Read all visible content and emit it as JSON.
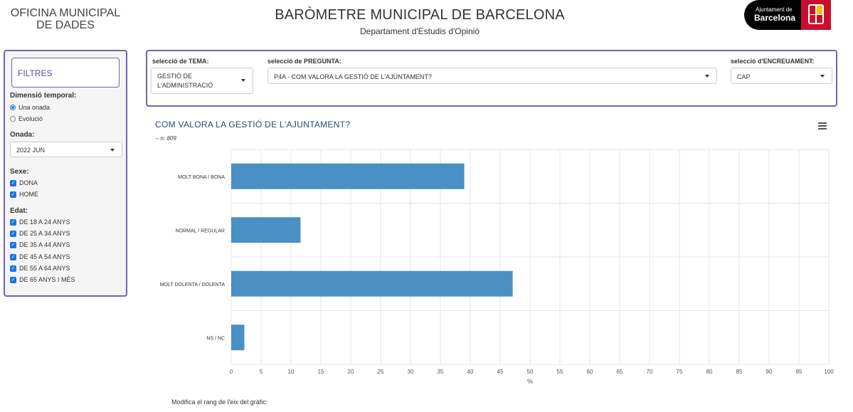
{
  "header": {
    "org_line1": "OFICINA MUNICIPAL",
    "org_line2": "DE DADES",
    "title": "BARÒMETRE MUNICIPAL DE BARCELONA",
    "subtitle": "Departament d'Estudis d'Opinió",
    "logo_small": "Ajuntament de",
    "logo_big": "Barcelona"
  },
  "sidebar": {
    "title": "FILTRES",
    "dim_label": "Dimensió temporal:",
    "dim_options": [
      {
        "label": "Una onada",
        "selected": true
      },
      {
        "label": "Evolució",
        "selected": false
      }
    ],
    "onada_label": "Onada:",
    "onada_value": "2022 JUN",
    "sexe_label": "Sexe:",
    "sexe_options": [
      "DONA",
      "HOME"
    ],
    "edat_label": "Edat:",
    "edat_options": [
      "DE 18 A 24 ANYS",
      "DE 25 A 34 ANYS",
      "DE 35 A 44 ANYS",
      "DE 45 A 54 ANYS",
      "DE 55 A 64 ANYS",
      "DE 65 ANYS I MÉS"
    ]
  },
  "selectors": {
    "tema_label": "selecció de TEMA:",
    "tema_value_line1": "GESTIÓ DE",
    "tema_value_line2": "L'ADMINISTRACIÓ",
    "pregunta_label": "selecció de PREGUNTA:",
    "pregunta_value": "P4A - COM VALORA LA GESTIÓ DE L'AJUNTAMENT?",
    "encre_label": "selecció d'ENCREUAMENT:",
    "encre_value": "CAP"
  },
  "chart_header": {
    "title": "COM VALORA LA GESTIÓ DE L'AJUNTAMENT?",
    "subtitle": "-- n: 809"
  },
  "chart_data": {
    "type": "bar",
    "orientation": "horizontal",
    "title": "COM VALORA LA GESTIÓ DE L'AJUNTAMENT?",
    "categories": [
      "MOLT BONA / BONA",
      "NORMAL / REGULAR",
      "MOLT DOLENTA / DOLENTA",
      "NS / NC"
    ],
    "values": [
      39,
      11.6,
      47.1,
      2.2
    ],
    "xlabel": "%",
    "xlim": [
      0,
      100
    ],
    "xticks": [
      0,
      5,
      10,
      15,
      20,
      25,
      30,
      35,
      40,
      45,
      50,
      55,
      60,
      65,
      70,
      75,
      80,
      85,
      90,
      95,
      100
    ],
    "grid": true,
    "bar_color": "#4a90c4"
  },
  "footer": {
    "text": "Modifica el rang de l'eix del gràfic:"
  }
}
